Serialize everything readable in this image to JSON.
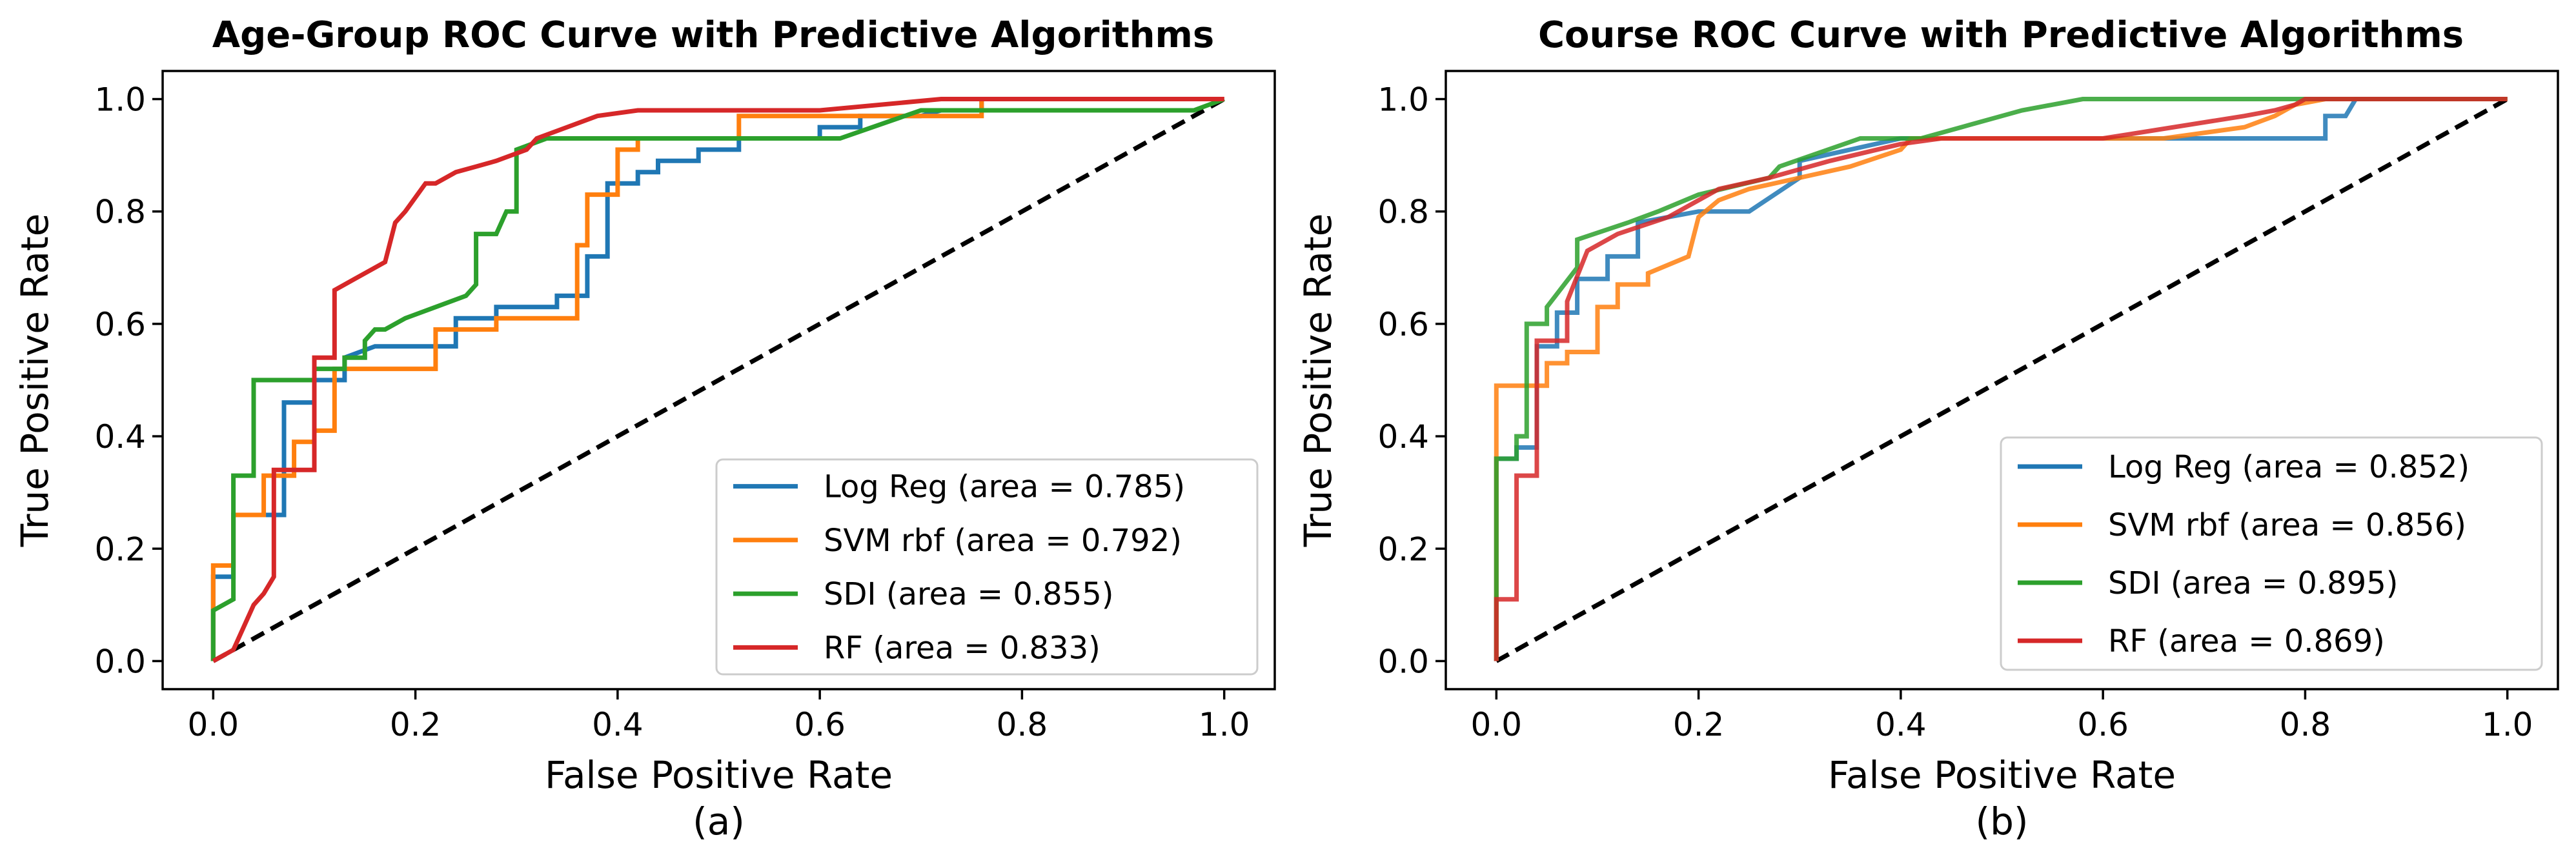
{
  "chart_data": [
    {
      "type": "line",
      "title": "Age-Group ROC Curve with Predictive Algorithms",
      "xlabel": "False Positive Rate",
      "ylabel": "True Positive Rate",
      "caption": "(a)",
      "xlim": [
        -0.05,
        1.05
      ],
      "ylim": [
        -0.05,
        1.05
      ],
      "xticks": [
        "0.0",
        "0.2",
        "0.4",
        "0.6",
        "0.8",
        "1.0"
      ],
      "yticks": [
        "0.0",
        "0.2",
        "0.4",
        "0.6",
        "0.8",
        "1.0"
      ],
      "legend_position": "lower-right",
      "baseline": {
        "x": [
          0,
          1
        ],
        "y": [
          0,
          1
        ],
        "style": "dashed",
        "color": "#000000"
      },
      "series": [
        {
          "name": "Log Reg (area = 0.785)",
          "color": "#1f77b4",
          "x": [
            0,
            0,
            0.02,
            0.02,
            0.05,
            0.06,
            0.07,
            0.07,
            0.1,
            0.1,
            0.13,
            0.13,
            0.16,
            0.2,
            0.24,
            0.24,
            0.28,
            0.28,
            0.34,
            0.34,
            0.37,
            0.37,
            0.39,
            0.39,
            0.42,
            0.42,
            0.44,
            0.44,
            0.48,
            0.48,
            0.52,
            0.52,
            0.6,
            0.6,
            0.64,
            0.64,
            0.7,
            0.72,
            0.76,
            0.76,
            0.78,
            0.8,
            1
          ],
          "y": [
            0,
            0.15,
            0.15,
            0.26,
            0.26,
            0.26,
            0.26,
            0.46,
            0.46,
            0.5,
            0.5,
            0.54,
            0.56,
            0.56,
            0.56,
            0.61,
            0.61,
            0.63,
            0.63,
            0.65,
            0.65,
            0.72,
            0.72,
            0.85,
            0.85,
            0.87,
            0.87,
            0.89,
            0.89,
            0.91,
            0.91,
            0.93,
            0.93,
            0.95,
            0.95,
            0.97,
            0.97,
            0.98,
            0.98,
            1,
            1,
            1,
            1
          ]
        },
        {
          "name": "SVM rbf (area = 0.792)",
          "color": "#ff7f0e",
          "x": [
            0,
            0,
            0.02,
            0.02,
            0.05,
            0.05,
            0.08,
            0.08,
            0.1,
            0.1,
            0.12,
            0.12,
            0.2,
            0.22,
            0.22,
            0.28,
            0.28,
            0.36,
            0.36,
            0.37,
            0.37,
            0.4,
            0.4,
            0.42,
            0.42,
            0.52,
            0.52,
            0.6,
            0.75,
            0.76,
            0.76,
            1
          ],
          "y": [
            0,
            0.17,
            0.17,
            0.26,
            0.26,
            0.33,
            0.33,
            0.39,
            0.39,
            0.41,
            0.41,
            0.52,
            0.52,
            0.52,
            0.59,
            0.59,
            0.61,
            0.61,
            0.74,
            0.74,
            0.83,
            0.83,
            0.91,
            0.91,
            0.93,
            0.93,
            0.97,
            0.97,
            0.97,
            0.97,
            1,
            1
          ]
        },
        {
          "name": "SDI (area = 0.855)",
          "color": "#2ca02c",
          "x": [
            0,
            0,
            0.02,
            0.02,
            0.04,
            0.04,
            0.1,
            0.1,
            0.13,
            0.13,
            0.15,
            0.15,
            0.16,
            0.17,
            0.19,
            0.19,
            0.22,
            0.22,
            0.25,
            0.26,
            0.26,
            0.28,
            0.29,
            0.3,
            0.3,
            0.33,
            0.38,
            0.38,
            0.5,
            0.62,
            0.7,
            0.97,
            1
          ],
          "y": [
            0,
            0.09,
            0.11,
            0.33,
            0.33,
            0.5,
            0.5,
            0.52,
            0.52,
            0.54,
            0.54,
            0.57,
            0.59,
            0.59,
            0.61,
            0.61,
            0.63,
            0.63,
            0.65,
            0.67,
            0.76,
            0.76,
            0.8,
            0.8,
            0.91,
            0.93,
            0.93,
            0.93,
            0.93,
            0.93,
            0.98,
            0.98,
            1
          ]
        },
        {
          "name": "RF (area = 0.833)",
          "color": "#d62728",
          "x": [
            0,
            0.02,
            0.03,
            0.04,
            0.05,
            0.06,
            0.06,
            0.1,
            0.1,
            0.12,
            0.12,
            0.14,
            0.16,
            0.17,
            0.18,
            0.19,
            0.21,
            0.22,
            0.24,
            0.26,
            0.28,
            0.31,
            0.32,
            0.35,
            0.38,
            0.42,
            0.48,
            0.6,
            0.72,
            0.8,
            1
          ],
          "y": [
            0,
            0.02,
            0.06,
            0.1,
            0.12,
            0.15,
            0.34,
            0.34,
            0.54,
            0.54,
            0.66,
            0.68,
            0.7,
            0.71,
            0.78,
            0.8,
            0.85,
            0.85,
            0.87,
            0.88,
            0.89,
            0.91,
            0.93,
            0.95,
            0.97,
            0.98,
            0.98,
            0.98,
            1,
            1,
            1
          ]
        }
      ]
    },
    {
      "type": "line",
      "title": "Course ROC Curve with Predictive Algorithms",
      "xlabel": "False Positive Rate",
      "ylabel": "True Positive Rate",
      "caption": "(b)",
      "xlim": [
        -0.05,
        1.05
      ],
      "ylim": [
        -0.05,
        1.05
      ],
      "xticks": [
        "0.0",
        "0.2",
        "0.4",
        "0.6",
        "0.8",
        "1.0"
      ],
      "yticks": [
        "0.0",
        "0.2",
        "0.4",
        "0.6",
        "0.8",
        "1.0"
      ],
      "legend_position": "lower-right",
      "baseline": {
        "x": [
          0,
          1
        ],
        "y": [
          0,
          1
        ],
        "style": "dashed",
        "color": "#000000"
      },
      "series": [
        {
          "name": "Log Reg (area = 0.852)",
          "color": "#1f77b4",
          "x": [
            0,
            0,
            0.02,
            0.02,
            0.04,
            0.04,
            0.06,
            0.06,
            0.08,
            0.08,
            0.11,
            0.11,
            0.14,
            0.14,
            0.2,
            0.25,
            0.3,
            0.3,
            0.4,
            0.5,
            0.7,
            0.73,
            0.82,
            0.82,
            0.84,
            0.85,
            1
          ],
          "y": [
            0,
            0.36,
            0.36,
            0.38,
            0.38,
            0.56,
            0.56,
            0.62,
            0.62,
            0.68,
            0.68,
            0.72,
            0.72,
            0.78,
            0.8,
            0.8,
            0.86,
            0.89,
            0.93,
            0.93,
            0.93,
            0.93,
            0.93,
            0.97,
            0.97,
            1,
            1
          ]
        },
        {
          "name": "SVM rbf (area = 0.856)",
          "color": "#ff7f0e",
          "x": [
            0,
            0,
            0.03,
            0.03,
            0.05,
            0.05,
            0.07,
            0.07,
            0.1,
            0.1,
            0.12,
            0.12,
            0.15,
            0.15,
            0.19,
            0.2,
            0.22,
            0.25,
            0.3,
            0.35,
            0.4,
            0.41,
            0.66,
            0.74,
            0.77,
            0.79,
            0.82,
            1
          ],
          "y": [
            0,
            0.49,
            0.49,
            0.49,
            0.49,
            0.53,
            0.53,
            0.55,
            0.55,
            0.63,
            0.63,
            0.67,
            0.67,
            0.69,
            0.72,
            0.79,
            0.82,
            0.84,
            0.86,
            0.88,
            0.91,
            0.93,
            0.93,
            0.95,
            0.97,
            0.99,
            1,
            1
          ]
        },
        {
          "name": "SDI (area = 0.895)",
          "color": "#2ca02c",
          "x": [
            0,
            0,
            0.02,
            0.02,
            0.03,
            0.03,
            0.05,
            0.05,
            0.08,
            0.08,
            0.13,
            0.16,
            0.2,
            0.27,
            0.28,
            0.36,
            0.42,
            0.46,
            0.52,
            0.58,
            0.62,
            1
          ],
          "y": [
            0,
            0.36,
            0.36,
            0.4,
            0.4,
            0.6,
            0.6,
            0.63,
            0.7,
            0.75,
            0.78,
            0.8,
            0.83,
            0.86,
            0.88,
            0.93,
            0.93,
            0.95,
            0.98,
            1,
            1,
            1
          ]
        },
        {
          "name": "RF (area = 0.869)",
          "color": "#d62728",
          "x": [
            0,
            0,
            0.02,
            0.02,
            0.04,
            0.04,
            0.07,
            0.07,
            0.09,
            0.12,
            0.17,
            0.22,
            0.27,
            0.33,
            0.4,
            0.44,
            0.6,
            0.74,
            0.77,
            0.79,
            0.8,
            1
          ],
          "y": [
            0,
            0.11,
            0.11,
            0.33,
            0.33,
            0.57,
            0.57,
            0.64,
            0.73,
            0.76,
            0.79,
            0.84,
            0.86,
            0.89,
            0.92,
            0.93,
            0.93,
            0.97,
            0.98,
            0.99,
            1,
            1
          ]
        }
      ]
    }
  ]
}
